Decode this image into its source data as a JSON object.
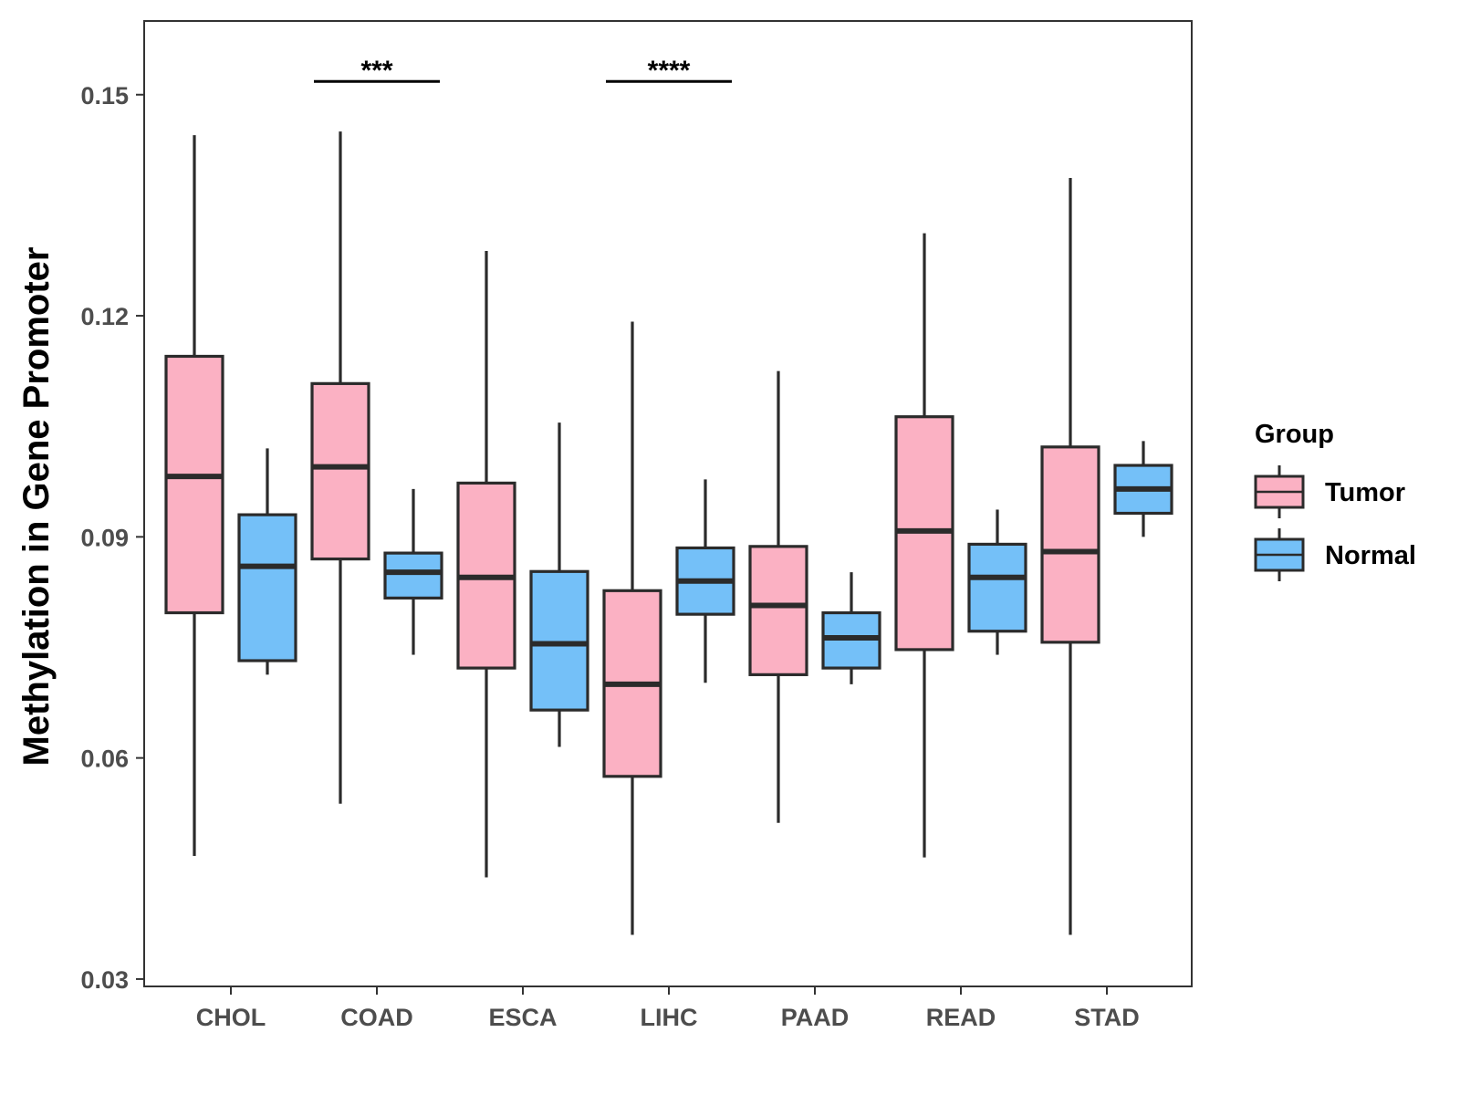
{
  "chart_data": {
    "type": "boxplot",
    "ylabel": "Methylation in Gene Promoter",
    "xlabel": "",
    "ylim": [
      0.029,
      0.16
    ],
    "yticks": [
      0.03,
      0.06,
      0.09,
      0.12,
      0.15
    ],
    "ytick_labels": [
      "0.03",
      "0.06",
      "0.09",
      "0.12",
      "0.15"
    ],
    "categories": [
      "CHOL",
      "COAD",
      "ESCA",
      "LIHC",
      "PAAD",
      "READ",
      "STAD"
    ],
    "legend": {
      "title": "Group",
      "position": "right",
      "entries": [
        {
          "name": "Tumor",
          "color": "#fbb1c3"
        },
        {
          "name": "Normal",
          "color": "#74c0f8"
        }
      ]
    },
    "series": [
      {
        "name": "Tumor",
        "color": "#fbb1c3",
        "boxes": [
          {
            "category": "CHOL",
            "min": 0.0467,
            "q1": 0.0797,
            "median": 0.0982,
            "q3": 0.1145,
            "max": 0.1445
          },
          {
            "category": "COAD",
            "min": 0.0538,
            "q1": 0.087,
            "median": 0.0995,
            "q3": 0.1108,
            "max": 0.145
          },
          {
            "category": "ESCA",
            "min": 0.0438,
            "q1": 0.0722,
            "median": 0.0845,
            "q3": 0.0973,
            "max": 0.1288
          },
          {
            "category": "LIHC",
            "min": 0.036,
            "q1": 0.0575,
            "median": 0.07,
            "q3": 0.0827,
            "max": 0.1192
          },
          {
            "category": "PAAD",
            "min": 0.0512,
            "q1": 0.0713,
            "median": 0.0807,
            "q3": 0.0887,
            "max": 0.1125
          },
          {
            "category": "READ",
            "min": 0.0465,
            "q1": 0.0747,
            "median": 0.0908,
            "q3": 0.1063,
            "max": 0.1312
          },
          {
            "category": "STAD",
            "min": 0.036,
            "q1": 0.0757,
            "median": 0.088,
            "q3": 0.1022,
            "max": 0.1387
          }
        ]
      },
      {
        "name": "Normal",
        "color": "#74c0f8",
        "boxes": [
          {
            "category": "CHOL",
            "min": 0.0713,
            "q1": 0.0732,
            "median": 0.086,
            "q3": 0.093,
            "max": 0.102
          },
          {
            "category": "COAD",
            "min": 0.074,
            "q1": 0.0817,
            "median": 0.0852,
            "q3": 0.0878,
            "max": 0.0965
          },
          {
            "category": "ESCA",
            "min": 0.0615,
            "q1": 0.0665,
            "median": 0.0755,
            "q3": 0.0853,
            "max": 0.1055
          },
          {
            "category": "LIHC",
            "min": 0.0702,
            "q1": 0.0795,
            "median": 0.084,
            "q3": 0.0885,
            "max": 0.0978
          },
          {
            "category": "PAAD",
            "min": 0.07,
            "q1": 0.0722,
            "median": 0.0763,
            "q3": 0.0797,
            "max": 0.0852
          },
          {
            "category": "READ",
            "min": 0.074,
            "q1": 0.0772,
            "median": 0.0845,
            "q3": 0.089,
            "max": 0.0937
          },
          {
            "category": "STAD",
            "min": 0.09,
            "q1": 0.0932,
            "median": 0.0965,
            "q3": 0.0997,
            "max": 0.103
          }
        ]
      }
    ],
    "annotations": [
      {
        "category": "COAD",
        "label": "***",
        "y": 0.1518
      },
      {
        "category": "LIHC",
        "label": "****",
        "y": 0.1518
      }
    ]
  }
}
